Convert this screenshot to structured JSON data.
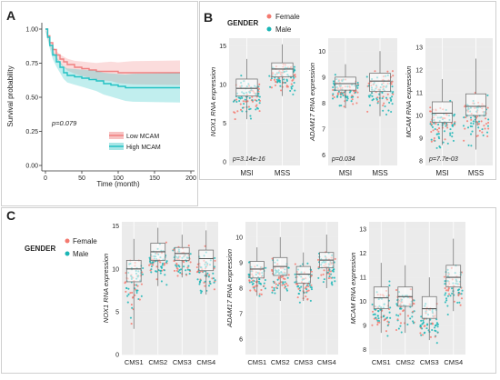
{
  "panel_labels": [
    "A",
    "B",
    "C"
  ],
  "colors": {
    "female": "#f4796f",
    "male": "#1bb6b6",
    "low_mcam": "#f08080",
    "high_mcam": "#22c1c3"
  },
  "chart_data": [
    {
      "id": "A",
      "type": "line",
      "subtype": "kaplan-meier",
      "xlabel": "Time (month)",
      "ylabel": "Survival probability",
      "xlim": [
        0,
        200
      ],
      "ylim": [
        0,
        1
      ],
      "x_ticks": [
        0,
        50,
        100,
        150,
        200
      ],
      "y_ticks": [
        "0.00",
        "0.25",
        "0.50",
        "0.75",
        "1.00"
      ],
      "annotation": "p=0.079",
      "legend": [
        "Low MCAM",
        "High MCAM"
      ],
      "series": [
        {
          "name": "Low MCAM",
          "x": [
            0,
            3,
            6,
            10,
            15,
            20,
            25,
            30,
            40,
            50,
            60,
            70,
            80,
            90,
            100,
            110,
            120,
            185
          ],
          "y": [
            1,
            0.95,
            0.9,
            0.85,
            0.81,
            0.78,
            0.76,
            0.74,
            0.72,
            0.71,
            0.7,
            0.69,
            0.69,
            0.69,
            0.68,
            0.68,
            0.68,
            0.68
          ]
        },
        {
          "name": "High MCAM",
          "x": [
            0,
            3,
            6,
            10,
            15,
            20,
            25,
            30,
            40,
            50,
            60,
            70,
            80,
            90,
            100,
            110,
            120,
            185
          ],
          "y": [
            1,
            0.94,
            0.88,
            0.81,
            0.76,
            0.72,
            0.68,
            0.66,
            0.65,
            0.64,
            0.63,
            0.62,
            0.6,
            0.59,
            0.58,
            0.57,
            0.57,
            0.57
          ]
        }
      ]
    },
    {
      "id": "B",
      "type": "box",
      "legend_title": "GENDER",
      "legend": [
        "Female",
        "Male"
      ],
      "subplots": [
        {
          "ylabel": "NOX1 RNA expression",
          "ylim": [
            -0.5,
            16
          ],
          "y_ticks": [
            0,
            5,
            10,
            15
          ],
          "categories": [
            "MSI",
            "MSS"
          ],
          "annotation": "p=3.14e-16",
          "boxes": [
            {
              "q1": 8.5,
              "median": 9.5,
              "q3": 10.7,
              "wlo": 5.5,
              "whi": 13.3
            },
            {
              "q1": 11.0,
              "median": 12.0,
              "q3": 12.8,
              "wlo": 8.5,
              "whi": 15.2
            }
          ]
        },
        {
          "ylabel": "ADAM17 RNA expression",
          "ylim": [
            5.6,
            10.5
          ],
          "y_ticks": [
            6,
            7,
            8,
            9,
            10
          ],
          "categories": [
            "MSI",
            "MSS"
          ],
          "annotation": "p=0.034",
          "boxes": [
            {
              "q1": 8.5,
              "median": 8.75,
              "q3": 9.0,
              "wlo": 7.8,
              "whi": 9.5
            },
            {
              "q1": 8.45,
              "median": 8.85,
              "q3": 9.15,
              "wlo": 7.5,
              "whi": 10.0
            }
          ]
        },
        {
          "ylabel": "MCAM RNA expression",
          "ylim": [
            7.8,
            13.4
          ],
          "y_ticks": [
            8,
            9,
            10,
            11,
            12,
            13
          ],
          "categories": [
            "MSI",
            "MSS"
          ],
          "annotation": "p=7.7e-03",
          "boxes": [
            {
              "q1": 9.7,
              "median": 10.1,
              "q3": 10.6,
              "wlo": 8.7,
              "whi": 11.6
            },
            {
              "q1": 10.0,
              "median": 10.4,
              "q3": 10.95,
              "wlo": 8.5,
              "whi": 12.5
            }
          ]
        }
      ]
    },
    {
      "id": "C",
      "type": "box",
      "legend_title": "GENDER",
      "legend": [
        "Female",
        "Male"
      ],
      "subplots": [
        {
          "ylabel": "NOX1 RNA expression",
          "ylim": [
            0,
            15.5
          ],
          "y_ticks": [
            0,
            5,
            10,
            15
          ],
          "categories": [
            "CMS1",
            "CMS2",
            "CMS3",
            "CMS4"
          ],
          "boxes": [
            {
              "q1": 8.5,
              "median": 10.0,
              "q3": 11.0,
              "wlo": 3.0,
              "whi": 13.5
            },
            {
              "q1": 11.0,
              "median": 12.0,
              "q3": 13.0,
              "wlo": 8.0,
              "whi": 14.8
            },
            {
              "q1": 11.0,
              "median": 11.8,
              "q3": 12.5,
              "wlo": 9.0,
              "whi": 14.0
            },
            {
              "q1": 9.8,
              "median": 11.2,
              "q3": 12.2,
              "wlo": 7.0,
              "whi": 14.5
            }
          ]
        },
        {
          "ylabel": "ADAM17 RNA expression",
          "ylim": [
            5.4,
            10.6
          ],
          "y_ticks": [
            6,
            7,
            8,
            9,
            10
          ],
          "categories": [
            "CMS1",
            "CMS2",
            "CMS3",
            "CMS4"
          ],
          "boxes": [
            {
              "q1": 8.4,
              "median": 8.75,
              "q3": 9.05,
              "wlo": 7.7,
              "whi": 9.6
            },
            {
              "q1": 8.5,
              "median": 8.85,
              "q3": 9.2,
              "wlo": 7.5,
              "whi": 10.0
            },
            {
              "q1": 8.2,
              "median": 8.55,
              "q3": 8.85,
              "wlo": 7.5,
              "whi": 9.4
            },
            {
              "q1": 8.8,
              "median": 9.1,
              "q3": 9.4,
              "wlo": 8.0,
              "whi": 10.1
            }
          ]
        },
        {
          "ylabel": "MCAM RNA expression",
          "ylim": [
            7.8,
            13.3
          ],
          "y_ticks": [
            8,
            9,
            10,
            11,
            12,
            13
          ],
          "categories": [
            "CMS1",
            "CMS2",
            "CMS3",
            "CMS4"
          ],
          "boxes": [
            {
              "q1": 9.7,
              "median": 10.15,
              "q3": 10.6,
              "wlo": 8.7,
              "whi": 11.6
            },
            {
              "q1": 9.8,
              "median": 10.2,
              "q3": 10.6,
              "wlo": 8.7,
              "whi": 11.5
            },
            {
              "q1": 9.3,
              "median": 9.7,
              "q3": 10.2,
              "wlo": 8.4,
              "whi": 11.0
            },
            {
              "q1": 10.6,
              "median": 11.0,
              "q3": 11.5,
              "wlo": 9.6,
              "whi": 12.6
            }
          ]
        }
      ]
    }
  ]
}
